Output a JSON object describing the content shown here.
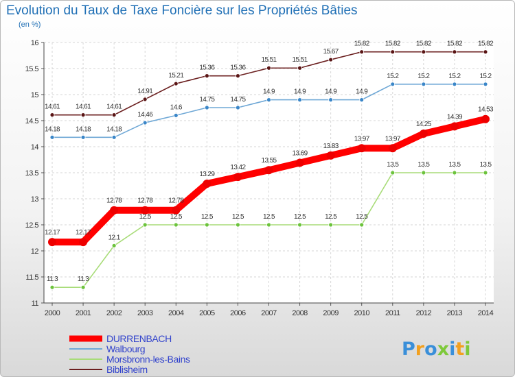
{
  "chart_data": {
    "type": "line",
    "title": "Evolution du Taux de Taxe Foncière sur les Propriétés Bâties",
    "ylabel": "(en %)",
    "xlabel": "",
    "ylim": [
      11,
      16
    ],
    "yticks": [
      "11",
      "11.5",
      "12",
      "12.5",
      "13",
      "13.5",
      "14",
      "14.5",
      "15",
      "15.5",
      "16"
    ],
    "x": [
      "2000",
      "2001",
      "2002",
      "2003",
      "2004",
      "2005",
      "2006",
      "2007",
      "2008",
      "2009",
      "2010",
      "2011",
      "2012",
      "2013",
      "2014"
    ],
    "grid": true,
    "legend_position": "bottom-left",
    "series": [
      {
        "name": "Biblisheim",
        "color": "#6b1f1f",
        "marker": "#5a1515",
        "values": [
          14.61,
          14.61,
          14.61,
          14.91,
          15.21,
          15.36,
          15.36,
          15.51,
          15.51,
          15.67,
          15.82,
          15.82,
          15.82,
          15.82,
          15.82
        ],
        "labels": [
          "14.61",
          "14.61",
          "14.61",
          "14.91",
          "15.21",
          "15.36",
          "15.36",
          "15.51",
          "15.51",
          "15.67",
          "15.82",
          "15.82",
          "15.82",
          "15.82",
          "15.82"
        ]
      },
      {
        "name": "Walbourg",
        "color": "#6fa8d6",
        "marker": "#3a86c8",
        "values": [
          14.18,
          14.18,
          14.18,
          14.46,
          14.6,
          14.75,
          14.75,
          14.9,
          14.9,
          14.9,
          14.9,
          15.2,
          15.2,
          15.2,
          15.2
        ],
        "labels": [
          "14.18",
          "14.18",
          "14.18",
          "14.46",
          "14.6",
          "14.75",
          "14.75",
          "14.9",
          "14.9",
          "14.9",
          "14.9",
          "15.2",
          "15.2",
          "15.2",
          "15.2"
        ]
      },
      {
        "name": "Morsbronn-les-Bains",
        "color": "#a8dc78",
        "marker": "#6cc33c",
        "values": [
          11.3,
          11.3,
          12.1,
          12.5,
          12.5,
          12.5,
          12.5,
          12.5,
          12.5,
          12.5,
          12.5,
          13.5,
          13.5,
          13.5,
          13.5
        ],
        "labels": [
          "11.3",
          "11.3",
          "12.1",
          "12.5",
          "12.5",
          "12.5",
          "12.5",
          "12.5",
          "12.5",
          "12.5",
          "12.5",
          "13.5",
          "13.5",
          "13.5",
          "13.5"
        ]
      },
      {
        "name": "DURRENBACH",
        "color": "#ff0000",
        "marker": "#ee0000",
        "bold": true,
        "values": [
          12.17,
          12.17,
          12.78,
          12.78,
          12.78,
          13.29,
          13.42,
          13.55,
          13.69,
          13.83,
          13.97,
          13.97,
          14.25,
          14.39,
          14.53
        ],
        "labels": [
          "12.17",
          "12.17",
          "12.78",
          "12.78",
          "12.78",
          "13.29",
          "13.42",
          "13.55",
          "13.69",
          "13.83",
          "13.97",
          "13.97",
          "14.25",
          "14.39",
          "14.53"
        ]
      }
    ],
    "legend": [
      "DURRENBACH",
      "Walbourg",
      "Morsbronn-les-Bains",
      "Biblisheim"
    ]
  },
  "logo": {
    "text": "Proxiti",
    "colors": [
      "#3a8fd9",
      "#f2a01f",
      "#3a8fd9",
      "#7ec93a",
      "#3a8fd9",
      "#f2a01f",
      "#7ec93a"
    ]
  }
}
